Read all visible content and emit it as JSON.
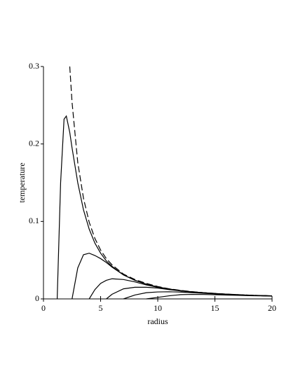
{
  "chart_data": {
    "type": "line",
    "xlabel": "radius",
    "ylabel": "temperature",
    "xlim": [
      0,
      20
    ],
    "ylim": [
      0,
      0.3
    ],
    "xticks": [
      0,
      5,
      10,
      15,
      20
    ],
    "yticks": [
      0,
      0.1,
      0.2,
      0.3
    ],
    "x": [
      1.2,
      1.5,
      1.8,
      2,
      2.3,
      2.5,
      3,
      3.5,
      4,
      4.5,
      5,
      5.5,
      6,
      7,
      8,
      9,
      10,
      11,
      12,
      13,
      14,
      15,
      16,
      17,
      18,
      19,
      20
    ],
    "series": [
      {
        "color": "#000000",
        "dash": true,
        "values": [
          null,
          null,
          null,
          null,
          0.3,
          0.254,
          0.176,
          0.13,
          0.099,
          0.078,
          0.063,
          0.052,
          0.044,
          0.032,
          0.025,
          0.02,
          0.016,
          0.013,
          0.011,
          0.0094,
          0.0081,
          0.0071,
          0.0062,
          0.0055,
          0.0049,
          0.0044,
          0.004
        ]
      },
      {
        "color": "#000000",
        "values": [
          0,
          0.15,
          0.232,
          0.236,
          0.215,
          0.195,
          0.15,
          0.115,
          0.09,
          0.072,
          0.059,
          0.049,
          0.042,
          0.031,
          0.024,
          0.019,
          0.0155,
          0.0128,
          0.0108,
          0.0092,
          0.008,
          0.007,
          0.0061,
          0.0054,
          0.0048,
          0.0043,
          0.0039
        ]
      },
      {
        "color": "#000000",
        "values": [
          null,
          null,
          null,
          null,
          null,
          0,
          0.04,
          0.057,
          0.059,
          0.056,
          0.052,
          0.047,
          0.041,
          0.031,
          0.024,
          0.019,
          0.015,
          0.0125,
          0.0105,
          0.009,
          0.0078,
          0.0069,
          0.006,
          0.0053,
          0.0047,
          0.0042,
          0.0038
        ]
      },
      {
        "color": "#000000",
        "values": [
          null,
          null,
          null,
          null,
          null,
          null,
          null,
          null,
          0,
          0.012,
          0.02,
          0.024,
          0.026,
          0.025,
          0.022,
          0.018,
          0.015,
          0.0125,
          0.0105,
          0.009,
          0.0078,
          0.0068,
          0.006,
          0.0053,
          0.0047,
          0.0042,
          0.0038
        ]
      },
      {
        "color": "#000000",
        "values": [
          null,
          null,
          null,
          null,
          null,
          null,
          null,
          null,
          null,
          null,
          null,
          0,
          0.006,
          0.013,
          0.015,
          0.015,
          0.014,
          0.012,
          0.0103,
          0.009,
          0.0078,
          0.0068,
          0.006,
          0.0053,
          0.0047,
          0.0042,
          0.0038
        ]
      },
      {
        "color": "#000000",
        "values": [
          null,
          null,
          null,
          null,
          null,
          null,
          null,
          null,
          null,
          null,
          null,
          null,
          null,
          0,
          0.005,
          0.008,
          0.009,
          0.0092,
          0.0088,
          0.008,
          0.0072,
          0.0065,
          0.0058,
          0.0052,
          0.0046,
          0.0042,
          0.0038
        ]
      },
      {
        "color": "#000000",
        "values": [
          null,
          null,
          null,
          null,
          null,
          null,
          null,
          null,
          null,
          null,
          null,
          null,
          null,
          null,
          null,
          0,
          0.002,
          0.004,
          0.0055,
          0.0058,
          0.0057,
          0.0054,
          0.005,
          0.0046,
          0.0042,
          0.0039,
          0.0036
        ]
      }
    ]
  }
}
